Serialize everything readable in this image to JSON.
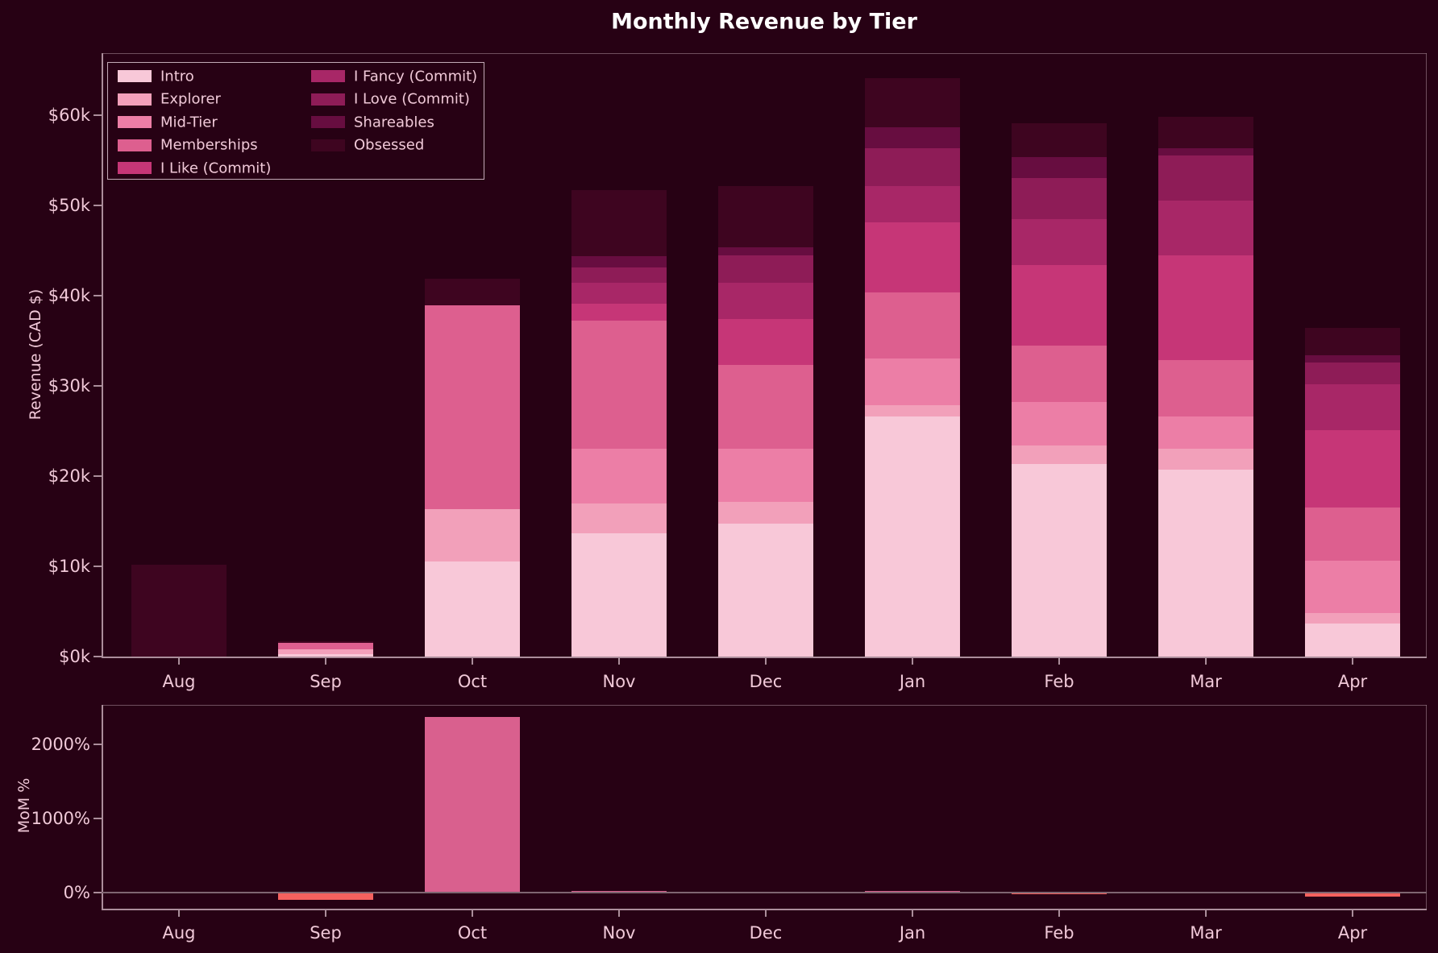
{
  "title": "Monthly Revenue by Tier",
  "colors": {
    "background": "#270114",
    "text": "#f0c9d8",
    "title_color": "#ffffff",
    "spine": "#ab8e9b",
    "zero_line": "#7e6671",
    "legend_border": "#c3aab7",
    "positive_bar": "#d9608e",
    "negative_bar": "#f4615e"
  },
  "chart_data": [
    {
      "type": "bar",
      "stacked": true,
      "title": "Monthly Revenue by Tier",
      "xlabel": "",
      "ylabel": "Revenue (CAD $)",
      "ylim": [
        0,
        67000
      ],
      "grid": false,
      "legend_position": "upper left",
      "categories": [
        "Aug",
        "Sep",
        "Oct",
        "Nov",
        "Dec",
        "Jan",
        "Feb",
        "Mar",
        "Apr"
      ],
      "ytick_labels": [
        "$0k",
        "$10k",
        "$20k",
        "$30k",
        "$40k",
        "$50k",
        "$60k"
      ],
      "ytick_values_k": [
        0,
        10,
        20,
        30,
        40,
        50,
        60
      ],
      "units": "thousands of CAD $",
      "series": [
        {
          "name": "Intro",
          "color": "#f8c8d8",
          "values": [
            0,
            0.3,
            10.5,
            13.7,
            14.7,
            26.6,
            21.3,
            20.7,
            3.7
          ]
        },
        {
          "name": "Explorer",
          "color": "#f2a0ba",
          "values": [
            0,
            0.5,
            5.8,
            3.3,
            2.4,
            1.3,
            2.1,
            2.3,
            1.1
          ]
        },
        {
          "name": "Mid-Tier",
          "color": "#ec7ea6",
          "values": [
            0,
            0,
            0,
            6.0,
            5.9,
            5.1,
            4.8,
            3.6,
            5.8
          ]
        },
        {
          "name": "Memberships",
          "color": "#dd5f8f",
          "values": [
            0,
            0.7,
            22.6,
            14.2,
            9.3,
            7.4,
            6.3,
            6.3,
            5.9
          ]
        },
        {
          "name": "I Like (Commit)",
          "color": "#c63677",
          "values": [
            0,
            0,
            0,
            1.9,
            5.1,
            7.7,
            8.9,
            11.6,
            8.6
          ]
        },
        {
          "name": "I Fancy (Commit)",
          "color": "#a82767",
          "values": [
            0,
            0,
            0,
            2.3,
            4.0,
            4.0,
            5.1,
            6.0,
            5.1
          ]
        },
        {
          "name": "I Love (Commit)",
          "color": "#8e1c57",
          "values": [
            0,
            0,
            0,
            1.7,
            3.1,
            4.2,
            4.5,
            5.0,
            2.4
          ]
        },
        {
          "name": "Shareables",
          "color": "#670d40",
          "values": [
            0,
            0,
            0,
            1.3,
            0.9,
            2.4,
            2.4,
            0.8,
            0.8
          ]
        },
        {
          "name": "Obsessed",
          "color": "#3e0520",
          "values": [
            10.2,
            0.2,
            3.0,
            7.3,
            6.7,
            5.4,
            3.7,
            3.5,
            3.0
          ]
        }
      ]
    },
    {
      "type": "bar",
      "stacked": false,
      "title": "",
      "xlabel": "",
      "ylabel": "MoM %",
      "ylim": [
        -150,
        2500
      ],
      "grid": false,
      "categories": [
        "Aug",
        "Sep",
        "Oct",
        "Nov",
        "Dec",
        "Jan",
        "Feb",
        "Mar",
        "Apr"
      ],
      "ytick_labels": [
        "0%",
        "1000%",
        "2000%"
      ],
      "ytick_values": [
        0,
        1000,
        2000
      ],
      "values": [
        null,
        -83,
        2365,
        23,
        1,
        23,
        -8,
        1,
        -39
      ]
    }
  ]
}
